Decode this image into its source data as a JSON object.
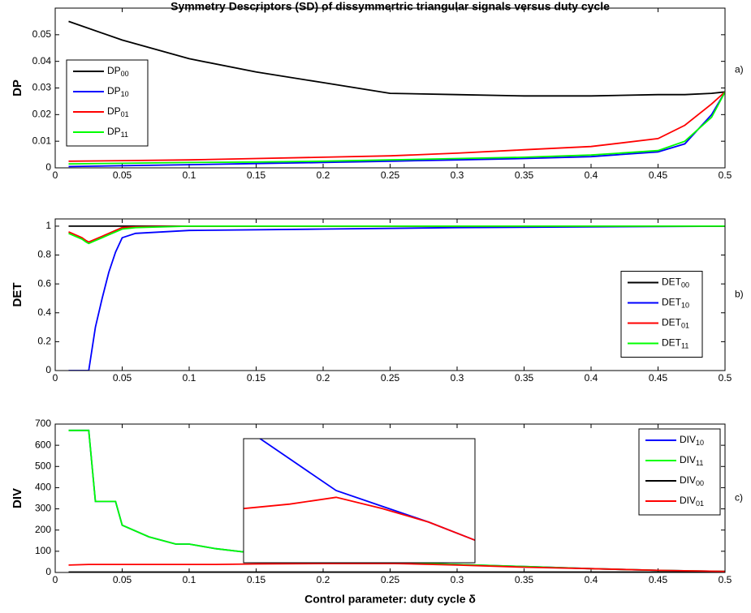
{
  "chart_data": [
    {
      "type": "line",
      "title": "Symmetry Descriptors (SD) of dissymmertric triangular signals versus duty cycle",
      "ylabel": "DP",
      "label": "a)",
      "legend": "upper left",
      "x": [
        0.01,
        0.05,
        0.1,
        0.15,
        0.2,
        0.25,
        0.3,
        0.35,
        0.4,
        0.45,
        0.47,
        0.49,
        0.5
      ],
      "series": [
        {
          "name": "DP00",
          "color": "#000000",
          "values": [
            0.055,
            0.048,
            0.041,
            0.036,
            0.032,
            0.028,
            0.0275,
            0.027,
            0.027,
            0.0275,
            0.0275,
            0.028,
            0.0285
          ]
        },
        {
          "name": "DP10",
          "color": "#0000ff",
          "values": [
            0.0005,
            0.0008,
            0.0012,
            0.0016,
            0.002,
            0.0025,
            0.003,
            0.0035,
            0.0042,
            0.006,
            0.009,
            0.02,
            0.0285
          ]
        },
        {
          "name": "DP01",
          "color": "#ff0000",
          "values": [
            0.0025,
            0.0027,
            0.003,
            0.0035,
            0.004,
            0.0045,
            0.0055,
            0.0068,
            0.008,
            0.011,
            0.016,
            0.024,
            0.0285
          ]
        },
        {
          "name": "DP11",
          "color": "#00ff00",
          "values": [
            0.0015,
            0.0017,
            0.002,
            0.0022,
            0.0025,
            0.003,
            0.0035,
            0.004,
            0.0048,
            0.0065,
            0.01,
            0.019,
            0.0285
          ]
        }
      ],
      "xlim": [
        0,
        0.5
      ],
      "xticks": [
        0,
        0.05,
        0.1,
        0.15,
        0.2,
        0.25,
        0.3,
        0.35,
        0.4,
        0.45,
        0.5
      ],
      "ylim": [
        0,
        0.06
      ],
      "yticks": [
        0,
        0.01,
        0.02,
        0.03,
        0.04,
        0.05
      ]
    },
    {
      "type": "line",
      "ylabel": "DET",
      "label": "b)",
      "legend": "center right",
      "x": [
        0.01,
        0.015,
        0.02,
        0.023,
        0.025,
        0.03,
        0.035,
        0.04,
        0.045,
        0.05,
        0.06,
        0.1,
        0.2,
        0.3,
        0.5
      ],
      "series": [
        {
          "name": "DET00",
          "color": "#000000",
          "values": [
            1,
            1,
            1,
            1,
            1,
            1,
            1,
            1,
            1,
            1,
            1,
            1,
            1,
            1,
            1
          ]
        },
        {
          "name": "DET10",
          "color": "#0000ff",
          "values": [
            0,
            0,
            0,
            0,
            0,
            0.3,
            0.5,
            0.68,
            0.82,
            0.92,
            0.95,
            0.97,
            0.98,
            0.99,
            1
          ]
        },
        {
          "name": "DET01",
          "color": "#ff0000",
          "values": [
            0.96,
            0.94,
            0.92,
            0.9,
            0.89,
            0.91,
            0.93,
            0.95,
            0.97,
            0.99,
            0.995,
            1,
            1,
            1,
            1
          ]
        },
        {
          "name": "DET11",
          "color": "#00ff00",
          "values": [
            0.95,
            0.93,
            0.91,
            0.89,
            0.88,
            0.9,
            0.92,
            0.94,
            0.96,
            0.98,
            0.99,
            1,
            1,
            1,
            1
          ]
        }
      ],
      "xlim": [
        0,
        0.5
      ],
      "xticks": [
        0,
        0.05,
        0.1,
        0.15,
        0.2,
        0.25,
        0.3,
        0.35,
        0.4,
        0.45,
        0.5
      ],
      "ylim": [
        0,
        1.05
      ],
      "yticks": [
        0,
        0.2,
        0.4,
        0.6,
        0.8,
        1
      ]
    },
    {
      "type": "line",
      "ylabel": "DIV",
      "label": "c)",
      "legend": "upper right",
      "xlabel": "Control parameter: duty cycle δ",
      "x": [
        0.01,
        0.025,
        0.03,
        0.045,
        0.05,
        0.07,
        0.09,
        0.1,
        0.12,
        0.15,
        0.2,
        0.25,
        0.3,
        0.35,
        0.4,
        0.45,
        0.5
      ],
      "series": [
        {
          "name": "DIV10",
          "color": "#0000ff",
          "values": [
            670,
            670,
            335,
            335,
            223,
            168,
            134,
            134,
            112,
            90,
            62,
            48,
            38,
            28,
            18,
            10,
            5
          ]
        },
        {
          "name": "DIV11",
          "color": "#00ff00",
          "values": [
            670,
            670,
            335,
            335,
            223,
            168,
            134,
            134,
            112,
            90,
            62,
            48,
            38,
            28,
            18,
            10,
            5
          ]
        },
        {
          "name": "DIV00",
          "color": "#000000",
          "values": [
            2,
            2,
            2,
            2,
            2,
            2,
            2,
            2,
            2,
            2,
            2,
            2,
            2,
            2,
            2,
            2,
            2
          ]
        },
        {
          "name": "DIV01",
          "color": "#ff0000",
          "values": [
            35,
            38,
            38,
            38,
            38,
            38,
            38,
            38,
            38,
            40,
            42,
            43,
            35,
            25,
            18,
            10,
            5
          ]
        }
      ],
      "xlim": [
        0,
        0.5
      ],
      "xticks": [
        0,
        0.05,
        0.1,
        0.15,
        0.2,
        0.25,
        0.3,
        0.35,
        0.4,
        0.45,
        0.5
      ],
      "ylim": [
        0,
        700
      ],
      "yticks": [
        0,
        100,
        200,
        300,
        400,
        500,
        600,
        700
      ]
    },
    {
      "type": "line",
      "x": [
        0.15,
        0.2,
        0.25,
        0.3,
        0.35,
        0.4
      ],
      "series": [
        {
          "color": "#0000ff",
          "values": [
            80,
            66,
            52,
            45,
            38,
            30
          ]
        },
        {
          "color": "#ff0000",
          "values": [
            44,
            46,
            49,
            44,
            38,
            30
          ]
        }
      ],
      "xlim": [
        0.15,
        0.4
      ],
      "ylim": [
        20,
        75
      ]
    }
  ]
}
